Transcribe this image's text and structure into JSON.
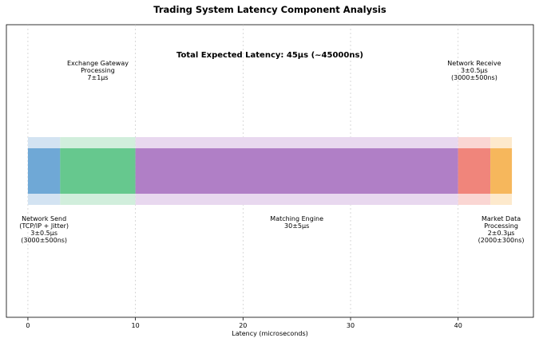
{
  "chart_data": {
    "type": "bar",
    "title": "Trading System Latency Component Analysis",
    "annotation": "Total Expected Latency: 45μs (~45000ns)",
    "xlabel": "Latency (microseconds)",
    "ylabel": "",
    "xlim": [
      -2,
      47
    ],
    "x_ticks": [
      0,
      10,
      20,
      30,
      40
    ],
    "grid": "vertical dotted",
    "components": [
      {
        "name": "Network Send",
        "start": 0,
        "mean": 3,
        "std": 0.5,
        "label_lines": [
          "Network Send",
          "(TCP/IP + Jitter)",
          "3±0.5μs",
          "(3000±500ns)"
        ],
        "label_pos": "below",
        "color": "#6fa8d6",
        "band_color": "#d3e3f2"
      },
      {
        "name": "Exchange Gateway Processing",
        "start": 3,
        "mean": 7,
        "std": 1,
        "label_lines": [
          "Exchange Gateway",
          "Processing",
          "7±1μs"
        ],
        "label_pos": "above",
        "color": "#66c88e",
        "band_color": "#d1eedc"
      },
      {
        "name": "Matching Engine",
        "start": 10,
        "mean": 30,
        "std": 5,
        "label_lines": [
          "Matching Engine",
          "30±5μs"
        ],
        "label_pos": "below",
        "color": "#b07fc6",
        "band_color": "#e8d8ef"
      },
      {
        "name": "Network Receive",
        "start": 40,
        "mean": 3,
        "std": 0.5,
        "label_lines": [
          "Network Receive",
          "3±0.5μs",
          "(3000±500ns)"
        ],
        "label_pos": "above",
        "color": "#f0857b",
        "band_color": "#fad6d3"
      },
      {
        "name": "Market Data Processing",
        "start": 43,
        "mean": 2,
        "std": 0.3,
        "label_lines": [
          "Market Data",
          "Processing",
          "2±0.3μs",
          "(2000±300ns)"
        ],
        "label_pos": "below",
        "color": "#f6b75c",
        "band_color": "#fde9cc"
      }
    ]
  }
}
